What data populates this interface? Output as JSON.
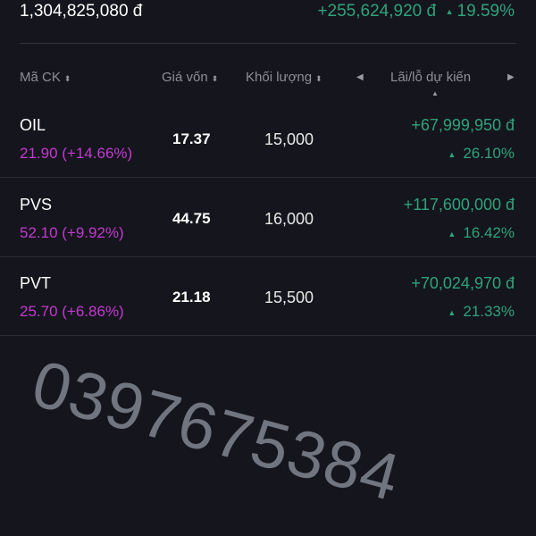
{
  "summary": {
    "total_value": "1,304,825,080 đ",
    "total_pl": "+255,624,920 đ",
    "total_pl_pct": "19.59%"
  },
  "columns": {
    "symbol": "Mã CK",
    "cost": "Giá vốn",
    "volume": "Khối lượng",
    "pl": "Lãi/lỗ dự kiến"
  },
  "rows": [
    {
      "symbol": "OIL",
      "price": "21.90 (+14.66%)",
      "cost": "17.37",
      "volume": "15,000",
      "pl": "+67,999,950 đ",
      "pl_pct": "26.10%"
    },
    {
      "symbol": "PVS",
      "price": "52.10 (+9.92%)",
      "cost": "44.75",
      "volume": "16,000",
      "pl": "+117,600,000 đ",
      "pl_pct": "16.42%"
    },
    {
      "symbol": "PVT",
      "price": "25.70 (+6.86%)",
      "cost": "21.18",
      "volume": "15,500",
      "pl": "+70,024,970 đ",
      "pl_pct": "21.33%"
    }
  ],
  "watermark": "0397675384",
  "colors": {
    "gain": "#2ea37a",
    "price": "#c23ad0",
    "background": "#15151d"
  }
}
